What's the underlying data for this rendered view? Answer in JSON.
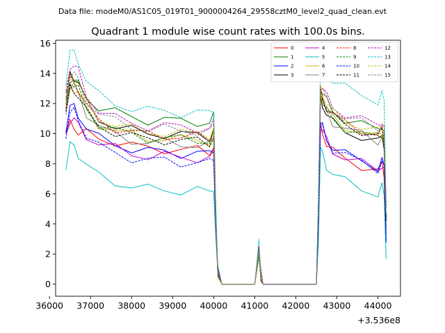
{
  "header": {
    "data_file": "Data file: modeM0/AS1C05_019T01_9000004264_29558cztM0_level2_quad_clean.evt"
  },
  "chart_data": {
    "type": "line",
    "title": "Quadrant 1 module wise count rates with 100.0s bins.",
    "xlabel": "",
    "ylabel": "",
    "x_offset_label": "+3.536e8",
    "xlim": [
      36150,
      44550
    ],
    "ylim": [
      -0.8,
      16.2
    ],
    "x_ticks": [
      36000,
      37000,
      38000,
      39000,
      40000,
      41000,
      42000,
      43000,
      44000
    ],
    "x_tick_labels": [
      "36000",
      "37000",
      "38000",
      "39000",
      "40000",
      "41000",
      "42000",
      "43000",
      "44000"
    ],
    "y_ticks": [
      0,
      2,
      4,
      6,
      8,
      10,
      12,
      14,
      16
    ],
    "y_tick_labels": [
      "0",
      "2",
      "4",
      "6",
      "8",
      "10",
      "12",
      "14",
      "16"
    ],
    "legend_position": "top-right",
    "pattern_x": [
      36400,
      36500,
      36600,
      36700,
      36900,
      37200,
      37600,
      38000,
      38400,
      38800,
      39200,
      39600,
      39900,
      40000,
      40050,
      40100,
      40200,
      41000,
      41100,
      41150,
      41200,
      41300,
      42500,
      42550,
      42600,
      42650,
      42750,
      42900,
      43200,
      43600,
      44000,
      44100,
      44150,
      44200
    ],
    "series": [
      {
        "name": "0",
        "color": "#ff0000",
        "dashed": false,
        "level": 9.5,
        "peak1": 10.6,
        "peak2": 10.4,
        "fin": 3.4
      },
      {
        "name": "1",
        "color": "#008000",
        "dashed": false,
        "level": 11.4,
        "peak1": 13.7,
        "peak2": 13.1,
        "fin": 5.0
      },
      {
        "name": "2",
        "color": "#0000ff",
        "dashed": false,
        "level": 9.3,
        "peak1": 11.8,
        "peak2": 10.7,
        "fin": 3.1
      },
      {
        "name": "3",
        "color": "#000000",
        "dashed": false,
        "level": 10.5,
        "peak1": 13.9,
        "peak2": 12.3,
        "fin": 4.3
      },
      {
        "name": "4",
        "color": "#bf00bf",
        "dashed": false,
        "level": 9.0,
        "peak1": 11.0,
        "peak2": 10.5,
        "fin": 3.6
      },
      {
        "name": "5",
        "color": "#00bfbf",
        "dashed": false,
        "level": 6.8,
        "peak1": 9.2,
        "peak2": 8.9,
        "fin": 2.0
      },
      {
        "name": "6",
        "color": "#bfbf00",
        "dashed": false,
        "level": 10.2,
        "peak1": 13.1,
        "peak2": 12.6,
        "fin": 4.2
      },
      {
        "name": "7",
        "color": "#808080",
        "dashed": false,
        "level": 9.9,
        "peak1": 13.2,
        "peak2": 12.4,
        "fin": 4.0
      },
      {
        "name": "8",
        "color": "#ff0000",
        "dashed": true,
        "level": 10.4,
        "peak1": 13.5,
        "peak2": 12.8,
        "fin": 4.4
      },
      {
        "name": "9",
        "color": "#008000",
        "dashed": true,
        "level": 10.2,
        "peak1": 13.4,
        "peak2": 12.5,
        "fin": 4.1
      },
      {
        "name": "10",
        "color": "#0000ff",
        "dashed": true,
        "level": 8.7,
        "peak1": 11.5,
        "peak2": 10.6,
        "fin": 3.2
      },
      {
        "name": "11",
        "color": "#000000",
        "dashed": true,
        "level": 10.1,
        "peak1": 13.0,
        "peak2": 12.7,
        "fin": 4.2
      },
      {
        "name": "12",
        "color": "#bf00bf",
        "dashed": true,
        "level": 11.0,
        "peak1": 14.6,
        "peak2": 13.4,
        "fin": 4.8
      },
      {
        "name": "13",
        "color": "#00bfbf",
        "dashed": true,
        "level": 12.0,
        "peak1": 15.4,
        "peak2": 15.1,
        "fin": 5.4
      },
      {
        "name": "14",
        "color": "#bfbf00",
        "dashed": true,
        "level": 10.6,
        "peak1": 13.8,
        "peak2": 13.0,
        "fin": 4.5
      },
      {
        "name": "15",
        "color": "#808080",
        "dashed": true,
        "level": 10.8,
        "peak1": 14.0,
        "peak2": 13.2,
        "fin": 4.6
      }
    ]
  }
}
